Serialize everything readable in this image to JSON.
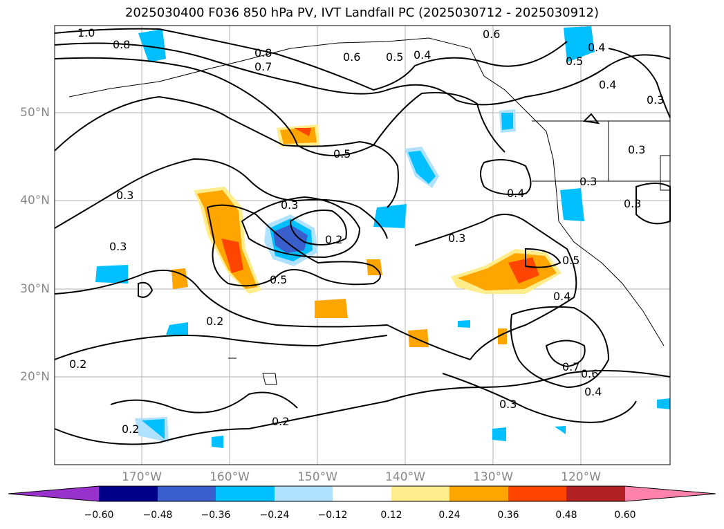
{
  "title": "2025030400 F036 850 hPa PV, IVT Landfall PC (2025030712 - 2025030912)",
  "lon_ticks": [
    "170°W",
    "160°W",
    "150°W",
    "140°W",
    "130°W",
    "120°W"
  ],
  "lat_ticks": [
    "50°N",
    "40°N",
    "30°N",
    "20°N"
  ],
  "contour_labels": [
    "1.0",
    "0.8",
    "0.8",
    "0.7",
    "0.6",
    "0.5",
    "0.4",
    "0.6",
    "0.4",
    "0.5",
    "0.4",
    "0.5",
    "0.3",
    "0.3",
    "0.3",
    "0.2",
    "0.5",
    "0.3",
    "0.2",
    "0.2",
    "0.2",
    "0.2",
    "0.4",
    "0.3",
    "0.3",
    "0.5",
    "0.4",
    "0.7",
    "0.6",
    "0.4",
    "0.3",
    "0.3",
    "0.3"
  ],
  "colorbar": {
    "tick_labels": [
      "−0.60",
      "−0.48",
      "−0.36",
      "−0.24",
      "−0.12",
      "0.12",
      "0.24",
      "0.36",
      "0.48",
      "0.60"
    ],
    "colors": [
      "#9932cc",
      "#00008b",
      "#3a5fcd",
      "#00bfff",
      "#b0e2ff",
      "#ffffff",
      "#ffec8b",
      "#ffa500",
      "#ff4500",
      "#b22222",
      "#ff82ab"
    ]
  },
  "fill_colors": {
    "neg_light": "#b0e2ff",
    "neg_mid": "#00bfff",
    "neg_strong": "#3a5fcd",
    "pos_light": "#ffec8b",
    "pos_mid": "#ffa500",
    "pos_strong": "#ff4500"
  }
}
